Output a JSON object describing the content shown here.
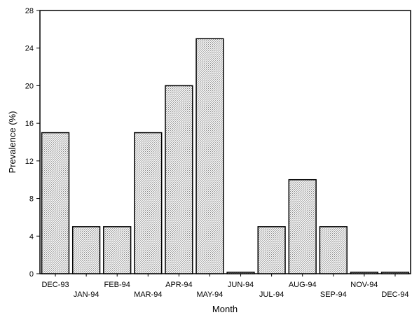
{
  "chart_data": {
    "type": "bar",
    "title": "",
    "xlabel": "Month",
    "ylabel": "Prevalence (%)",
    "categories": [
      "DEC-93",
      "JAN-94",
      "FEB-94",
      "MAR-94",
      "APR-94",
      "MAY-94",
      "JUN-94",
      "JUL-94",
      "AUG-94",
      "SEP-94",
      "NOV-94",
      "DEC-94"
    ],
    "values": [
      15,
      5,
      5,
      15,
      20,
      25,
      0,
      5,
      10,
      5,
      0,
      0
    ],
    "ylim": [
      0,
      28
    ],
    "yticks": [
      0,
      4,
      8,
      12,
      16,
      20,
      24,
      28
    ],
    "grid": false,
    "legend": "none",
    "bar_fill": "stippled light grey",
    "bar_edge_color": "#000000"
  }
}
